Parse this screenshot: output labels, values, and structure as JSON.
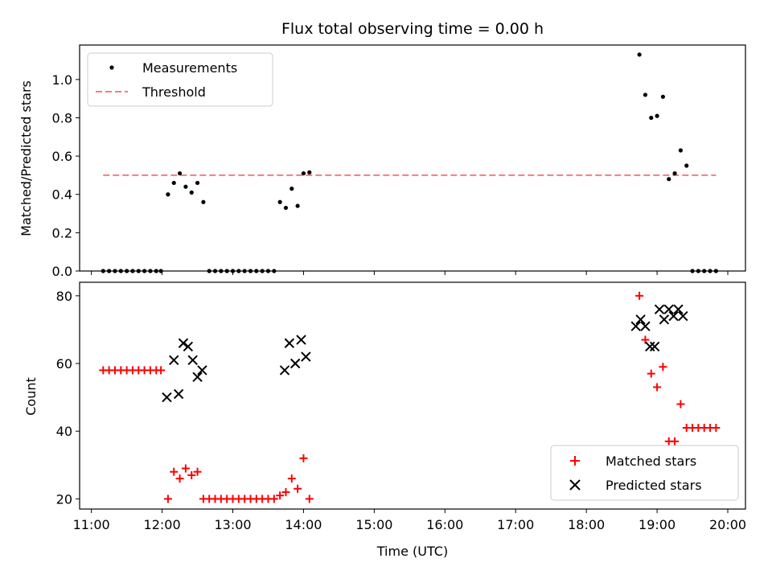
{
  "chart_data": [
    {
      "type": "scatter",
      "title": "Flux total observing time = 0.00 h",
      "ylabel": "Matched/Predicted stars",
      "ylim": [
        0,
        1.18
      ],
      "yticks": [
        "0.0",
        "0.2",
        "0.4",
        "0.6",
        "0.8",
        "1.0"
      ],
      "grid": false,
      "legend_position": "top-left",
      "series": [
        {
          "name": "Measurements",
          "style": "dot",
          "color": "#000000",
          "x": [
            "11:10",
            "11:15",
            "11:20",
            "11:25",
            "11:30",
            "11:35",
            "11:40",
            "11:45",
            "11:50",
            "11:55",
            "11:59",
            "12:05",
            "12:10",
            "12:15",
            "12:20",
            "12:25",
            "12:30",
            "12:35",
            "12:40",
            "12:45",
            "12:50",
            "12:55",
            "13:00",
            "13:05",
            "13:10",
            "13:15",
            "13:20",
            "13:25",
            "13:30",
            "13:35",
            "13:40",
            "13:45",
            "13:50",
            "13:55",
            "14:00",
            "14:05",
            "18:45",
            "18:50",
            "18:55",
            "19:00",
            "19:05",
            "19:10",
            "19:15",
            "19:20",
            "19:25",
            "19:30",
            "19:35",
            "19:40",
            "19:45",
            "19:50"
          ],
          "y": [
            0,
            0,
            0,
            0,
            0,
            0,
            0,
            0,
            0,
            0,
            0,
            0.4,
            0.46,
            0.51,
            0.44,
            0.41,
            0.46,
            0.36,
            0,
            0,
            0,
            0,
            0,
            0,
            0,
            0,
            0,
            0,
            0,
            0,
            0.36,
            0.33,
            0.43,
            0.34,
            0.51,
            0.515,
            1.13,
            0.92,
            0.8,
            0.81,
            0.91,
            0.48,
            0.51,
            0.63,
            0.55,
            0,
            0,
            0,
            0,
            0
          ]
        },
        {
          "name": "Threshold",
          "style": "dashed-line",
          "color": "#f47c7c",
          "x": [
            "11:10",
            "19:50"
          ],
          "y": [
            0.5,
            0.5
          ]
        }
      ]
    },
    {
      "type": "scatter",
      "xlabel": "Time (UTC)",
      "ylabel": "Count",
      "xlim": [
        "10:50",
        "20:15"
      ],
      "ylim": [
        17,
        84
      ],
      "xticks": [
        "11:00",
        "12:00",
        "13:00",
        "14:00",
        "15:00",
        "16:00",
        "17:00",
        "18:00",
        "19:00",
        "20:00"
      ],
      "yticks": [
        "20",
        "40",
        "60",
        "80"
      ],
      "grid": false,
      "legend_position": "bottom-right",
      "series": [
        {
          "name": "Matched stars",
          "style": "plus",
          "color": "#ff0000",
          "x": [
            "11:10",
            "11:15",
            "11:20",
            "11:25",
            "11:30",
            "11:35",
            "11:40",
            "11:45",
            "11:50",
            "11:55",
            "11:59",
            "12:05",
            "12:10",
            "12:15",
            "12:20",
            "12:25",
            "12:30",
            "12:35",
            "12:40",
            "12:45",
            "12:50",
            "12:55",
            "13:00",
            "13:05",
            "13:10",
            "13:15",
            "13:20",
            "13:25",
            "13:30",
            "13:35",
            "13:40",
            "13:45",
            "13:50",
            "13:55",
            "14:00",
            "14:05",
            "18:45",
            "18:50",
            "18:55",
            "19:00",
            "19:05",
            "19:10",
            "19:15",
            "19:20",
            "19:25",
            "19:30",
            "19:35",
            "19:40",
            "19:45",
            "19:50"
          ],
          "y": [
            58,
            58,
            58,
            58,
            58,
            58,
            58,
            58,
            58,
            58,
            58,
            20,
            28,
            26,
            29,
            27,
            28,
            20,
            20,
            20,
            20,
            20,
            20,
            20,
            20,
            20,
            20,
            20,
            20,
            20,
            21,
            22,
            26,
            23,
            32,
            20,
            80,
            67,
            57,
            53,
            59,
            37,
            37,
            48,
            41,
            41,
            41,
            41,
            41,
            41
          ]
        },
        {
          "name": "Predicted stars",
          "style": "x",
          "color": "#000000",
          "x": [
            "12:04",
            "12:10",
            "12:14",
            "12:18",
            "12:22",
            "12:26",
            "12:30",
            "12:34",
            "13:44",
            "13:48",
            "13:53",
            "13:58",
            "14:02",
            "18:42",
            "18:46",
            "18:50",
            "18:54",
            "18:58",
            "19:02",
            "19:06",
            "19:10",
            "19:14",
            "19:18",
            "19:22"
          ],
          "y": [
            50,
            61,
            51,
            66,
            65,
            61,
            56,
            58,
            58,
            66,
            60,
            67,
            62,
            71,
            73,
            71,
            65,
            65,
            76,
            73,
            76,
            74,
            76,
            74
          ]
        }
      ]
    }
  ]
}
